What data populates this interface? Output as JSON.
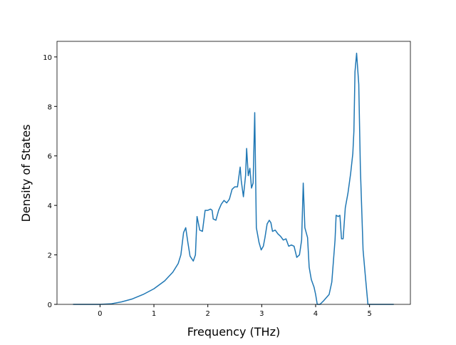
{
  "chart_data": {
    "type": "line",
    "x_label": "Frequency (THz)",
    "y_label": "Density of States",
    "x": [
      -0.5,
      0,
      0.2,
      0.4,
      0.6,
      0.8,
      1.0,
      1.2,
      1.35,
      1.45,
      1.5,
      1.55,
      1.59,
      1.63,
      1.67,
      1.73,
      1.77,
      1.8,
      1.85,
      1.9,
      1.95,
      2.0,
      2.05,
      2.08,
      2.1,
      2.15,
      2.2,
      2.25,
      2.3,
      2.35,
      2.4,
      2.45,
      2.5,
      2.55,
      2.6,
      2.62,
      2.66,
      2.7,
      2.72,
      2.75,
      2.78,
      2.81,
      2.84,
      2.87,
      2.9,
      2.95,
      2.99,
      3.03,
      3.06,
      3.1,
      3.14,
      3.17,
      3.2,
      3.25,
      3.3,
      3.35,
      3.4,
      3.45,
      3.5,
      3.55,
      3.6,
      3.65,
      3.7,
      3.74,
      3.77,
      3.8,
      3.85,
      3.88,
      3.92,
      3.97,
      4.0,
      4.03,
      4.08,
      4.15,
      4.25,
      4.3,
      4.36,
      4.38,
      4.42,
      4.45,
      4.48,
      4.51,
      4.55,
      4.6,
      4.65,
      4.69,
      4.71,
      4.73,
      4.76,
      4.8,
      4.83,
      4.88,
      4.92,
      4.97,
      5.0,
      5.45
    ],
    "series": [
      {
        "color": "#1f77b4",
        "values": [
          0,
          0,
          0.02,
          0.1,
          0.22,
          0.4,
          0.63,
          0.95,
          1.3,
          1.65,
          2.0,
          2.9,
          3.1,
          2.5,
          1.95,
          1.75,
          2.0,
          3.55,
          3.0,
          2.95,
          3.8,
          3.8,
          3.85,
          3.8,
          3.45,
          3.4,
          3.8,
          4.05,
          4.2,
          4.1,
          4.25,
          4.65,
          4.75,
          4.75,
          5.55,
          5.0,
          4.35,
          5.2,
          6.3,
          5.2,
          5.5,
          4.7,
          4.9,
          7.75,
          3.1,
          2.5,
          2.2,
          2.35,
          2.7,
          3.25,
          3.4,
          3.3,
          2.95,
          3.0,
          2.85,
          2.75,
          2.6,
          2.65,
          2.35,
          2.4,
          2.35,
          1.9,
          2.0,
          2.6,
          4.9,
          3.1,
          2.7,
          1.5,
          1.0,
          0.7,
          0.4,
          0.0,
          0.0,
          0.15,
          0.4,
          0.9,
          2.6,
          3.6,
          3.55,
          3.6,
          2.65,
          2.65,
          3.9,
          4.5,
          5.3,
          6.1,
          7.0,
          9.4,
          10.15,
          8.9,
          5.5,
          2.2,
          1.2,
          0.0,
          0.0,
          0.0
        ]
      }
    ],
    "xlim": [
      -0.798,
      5.758
    ],
    "ylim": [
      0,
      10.63
    ],
    "xticks": [
      0,
      1,
      2,
      3,
      4,
      5
    ],
    "yticks": [
      0,
      2,
      4,
      6,
      8,
      10
    ]
  }
}
